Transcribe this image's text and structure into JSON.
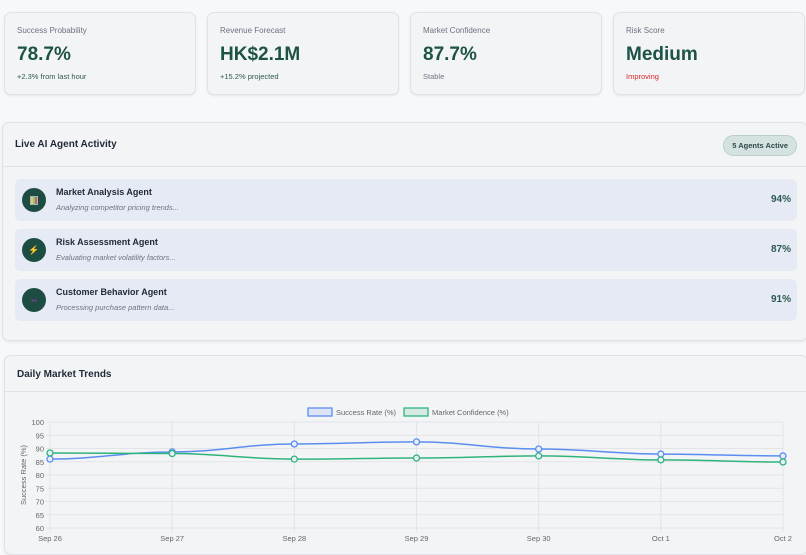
{
  "metrics": [
    {
      "label": "Success Probability",
      "value": "78.7%",
      "sub": "+2.3% from last hour",
      "sub_color": "#2d5a4e"
    },
    {
      "label": "Revenue Forecast",
      "value": "HK$2.1M",
      "sub": "+15.2% projected",
      "sub_color": "#2d5a4e"
    },
    {
      "label": "Market Confidence",
      "value": "87.7%",
      "sub": "Stable",
      "sub_color": "#6b7280"
    },
    {
      "label": "Risk Score",
      "value": "Medium",
      "sub": "Improving",
      "sub_color": "#dc2626"
    }
  ],
  "agents_panel": {
    "title": "Live AI Agent Activity",
    "badge": "5 Agents Active",
    "agents": [
      {
        "name": "Market Analysis Agent",
        "status": "Analyzing competitor pricing trends...",
        "percent": "94%",
        "icon": "bar-chart-icon"
      },
      {
        "name": "Risk Assessment Agent",
        "status": "Evaluating market volatility factors...",
        "percent": "87%",
        "icon": "lightning-icon"
      },
      {
        "name": "Customer Behavior Agent",
        "status": "Processing purchase pattern data...",
        "percent": "91%",
        "icon": "users-icon"
      }
    ]
  },
  "trends": {
    "title": "Daily Market Trends"
  },
  "chart_data": {
    "type": "line",
    "categories": [
      "Sep 26",
      "Sep 27",
      "Sep 28",
      "Sep 29",
      "Sep 30",
      "Oct 1",
      "Oct 2"
    ],
    "ylabel": "Success Rate (%)",
    "ylim": [
      60,
      100
    ],
    "yticks": [
      60,
      65,
      70,
      75,
      80,
      85,
      90,
      95,
      100
    ],
    "grid": true,
    "legend": "top",
    "series": [
      {
        "name": "Success Rate (%)",
        "color": "#5b8def",
        "values": [
          86.0,
          88.7,
          91.7,
          92.5,
          89.8,
          87.9,
          87.2
        ]
      },
      {
        "name": "Market Confidence (%)",
        "color": "#2fb37c",
        "values": [
          88.3,
          88.1,
          86.0,
          86.4,
          87.2,
          85.7,
          84.9
        ]
      }
    ]
  }
}
